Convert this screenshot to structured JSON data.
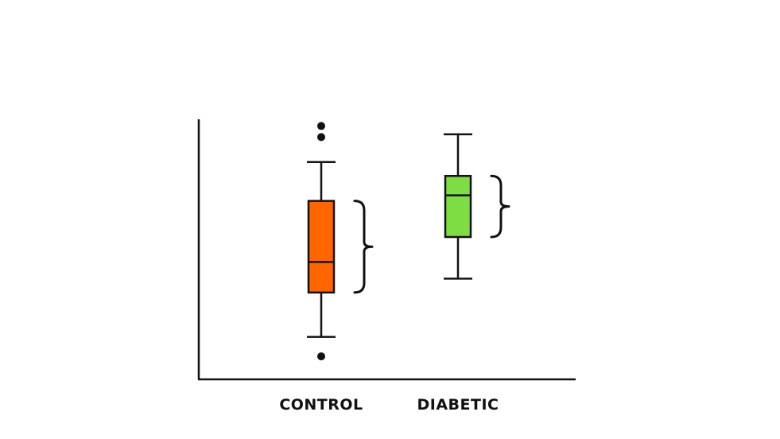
{
  "chart_data": {
    "type": "box",
    "title": "",
    "xlabel": "",
    "ylabel": "",
    "ylim": [
      0,
      100
    ],
    "grid": false,
    "legend": "none",
    "categories": [
      "CONTROL",
      "DIABETIC"
    ],
    "boxes": [
      {
        "category": "CONTROL",
        "color": "#ff6600",
        "whisker_low": 15,
        "q1": 31,
        "median": 42,
        "q3": 64,
        "whisker_high": 78,
        "outliers": [
          8,
          87,
          91
        ],
        "iqr_bracket": true
      },
      {
        "category": "DIABETIC",
        "color": "#7fdd44",
        "whisker_low": 36,
        "q1": 51,
        "median": 66,
        "q3": 73,
        "whisker_high": 88,
        "outliers": [],
        "iqr_bracket": true
      }
    ]
  }
}
